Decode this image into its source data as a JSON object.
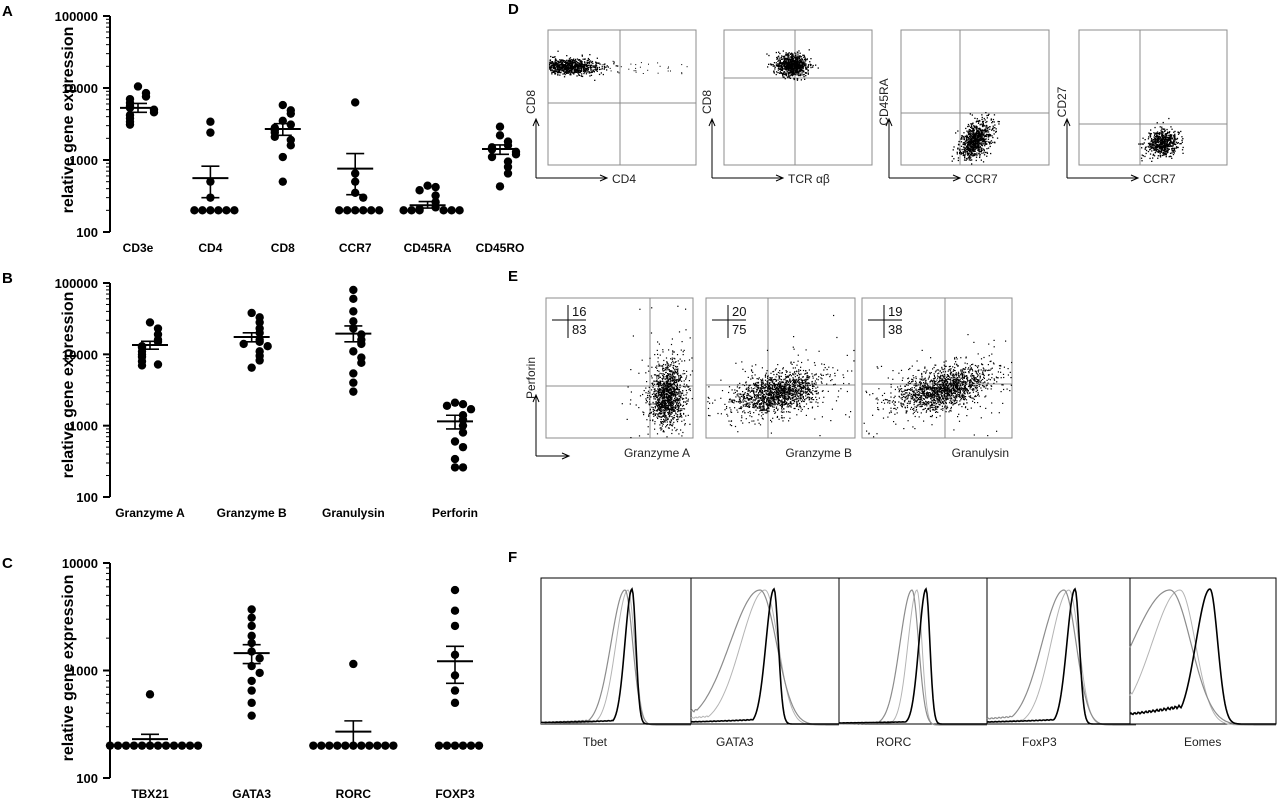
{
  "panel_letters": {
    "A": "A",
    "B": "B",
    "C": "C",
    "D": "D",
    "E": "E",
    "F": "F"
  },
  "chart_data": [
    {
      "panel": "A",
      "type": "scatter",
      "ylabel": "relative gene expression",
      "yscale": "log",
      "ylim": [
        100,
        100000
      ],
      "yticks": [
        "100",
        "1000",
        "10000",
        "100000"
      ],
      "categories": [
        "CD3e",
        "CD4",
        "CD8",
        "CCR7",
        "CD45RA",
        "CD45RO"
      ],
      "points": [
        [
          10500,
          8500,
          7600,
          7000,
          6200,
          5600,
          5300,
          5000,
          4600,
          4200,
          3800,
          3400,
          3100
        ],
        [
          3400,
          2400,
          500,
          300,
          200,
          200,
          200,
          200,
          200,
          200
        ],
        [
          5800,
          4900,
          4400,
          3500,
          3100,
          2800,
          2600,
          2400,
          2100,
          1900,
          1600,
          1100,
          500
        ],
        [
          6300,
          650,
          500,
          350,
          300,
          200,
          200,
          200,
          200,
          200,
          200
        ],
        [
          440,
          420,
          380,
          320,
          260,
          220,
          210,
          200,
          200,
          200,
          200,
          200,
          200
        ],
        [
          2900,
          2200,
          1800,
          1600,
          1500,
          1400,
          1300,
          1200,
          1100,
          950,
          800,
          650,
          430
        ]
      ],
      "mean": [
        5300,
        560,
        2700,
        760,
        235,
        1420
      ],
      "sem_low": [
        4600,
        300,
        2200,
        330,
        215,
        1200
      ],
      "sem_high": [
        6100,
        820,
        3200,
        1230,
        265,
        1620
      ]
    },
    {
      "panel": "B",
      "type": "scatter",
      "ylabel": "relative gene expression",
      "yscale": "log",
      "ylim": [
        100,
        100000
      ],
      "yticks": [
        "100",
        "1000",
        "10000",
        "100000"
      ],
      "categories": [
        "Granzyme A",
        "Granzyme B",
        "Granulysin",
        "Perforin"
      ],
      "points": [
        [
          28000,
          23000,
          19000,
          16000,
          15000,
          13000,
          12500,
          11000,
          10000,
          9200,
          8000,
          7200,
          7000
        ],
        [
          38000,
          33000,
          28000,
          23000,
          20000,
          16000,
          15000,
          14000,
          13000,
          11000,
          9500,
          8200,
          6500
        ],
        [
          80000,
          60000,
          40000,
          29000,
          23000,
          19000,
          16000,
          14000,
          11000,
          9000,
          7600,
          5400,
          4000,
          3000
        ],
        [
          2100,
          2000,
          1900,
          1700,
          1400,
          1200,
          1000,
          800,
          600,
          500,
          340,
          260,
          260
        ]
      ],
      "mean": [
        13500,
        17500,
        19500,
        1150
      ],
      "sem_low": [
        11800,
        15000,
        15000,
        900
      ],
      "sem_high": [
        15200,
        20000,
        25000,
        1400
      ]
    },
    {
      "panel": "C",
      "type": "scatter",
      "ylabel": "relative gene expression",
      "yscale": "log",
      "ylim": [
        100,
        10000
      ],
      "yticks": [
        "100",
        "1000",
        "10000"
      ],
      "categories": [
        "TBX21",
        "GATA3",
        "RORC",
        "FOXP3"
      ],
      "points": [
        [
          600,
          200,
          200,
          200,
          200,
          200,
          200,
          200,
          200,
          200,
          200,
          200,
          200
        ],
        [
          3700,
          3100,
          2600,
          2100,
          1800,
          1500,
          1300,
          1100,
          950,
          800,
          650,
          500,
          380
        ],
        [
          1150,
          200,
          200,
          200,
          200,
          200,
          200,
          200,
          200,
          200,
          200,
          200
        ],
        [
          5600,
          3600,
          2600,
          1400,
          900,
          650,
          500,
          200,
          200,
          200,
          200,
          200,
          200
        ]
      ],
      "mean": [
        230,
        1450,
        270,
        1220
      ],
      "sem_low": [
        205,
        1160,
        200,
        760
      ],
      "sem_high": [
        255,
        1740,
        340,
        1680
      ]
    }
  ],
  "flow_D": [
    {
      "y": "CD8",
      "x": "CD4"
    },
    {
      "y": "CD8",
      "x": "TCR αβ"
    },
    {
      "y": "CD45RA",
      "x": "CCR7"
    },
    {
      "y": "CD27",
      "x": "CCR7"
    }
  ],
  "flow_E": {
    "ylabel": "Perforin",
    "plots": [
      {
        "x": "Granzyme A",
        "upper": "16",
        "lower": "83"
      },
      {
        "x": "Granzyme B",
        "upper": "20",
        "lower": "75"
      },
      {
        "x": "Granulysin",
        "upper": "19",
        "lower": "38"
      }
    ]
  },
  "flow_F": [
    "Tbet",
    "GATA3",
    "RORC",
    "FoxP3",
    "Eomes"
  ],
  "colors": {
    "points": "#000000",
    "flow_dots": "#000000",
    "gate_lines": "#8c8c8c",
    "hist_light": "#b4b4b4",
    "hist_mid": "#8c8c8c",
    "hist_dark": "#000000"
  }
}
